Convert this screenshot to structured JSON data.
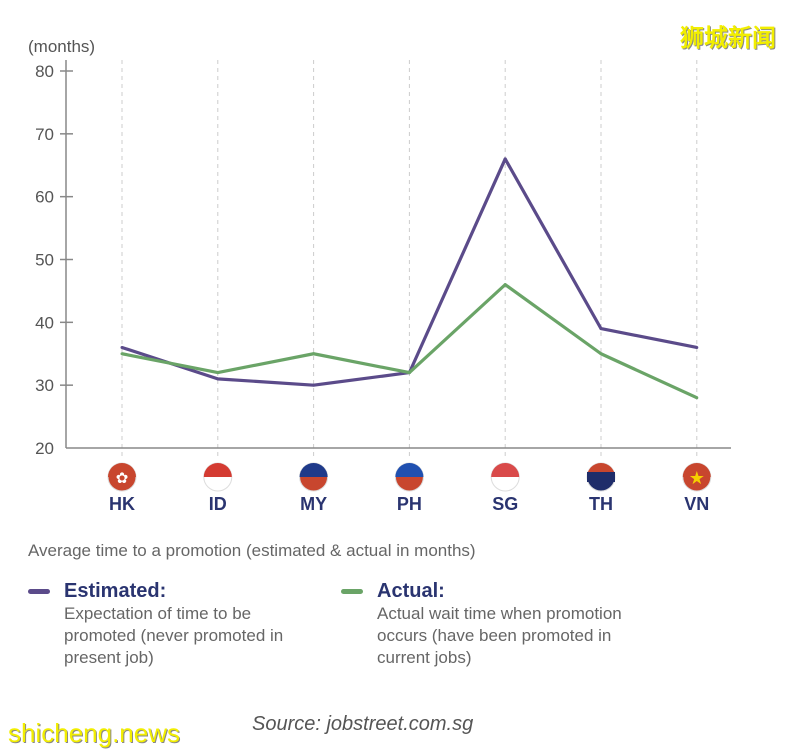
{
  "chart_data": {
    "type": "line",
    "ylabel": "(months)",
    "ylim": [
      20,
      80
    ],
    "yticks": [
      20,
      30,
      40,
      50,
      60,
      70,
      80
    ],
    "categories": [
      "HK",
      "ID",
      "MY",
      "PH",
      "SG",
      "TH",
      "VN"
    ],
    "series": [
      {
        "name": "Estimated",
        "color": "#5b4b8a",
        "values": [
          36,
          31,
          30,
          32,
          66,
          39,
          36
        ]
      },
      {
        "name": "Actual",
        "color": "#6aa467",
        "values": [
          35,
          32,
          35,
          32,
          46,
          35,
          28
        ]
      }
    ],
    "grid": "vertical dashed",
    "title": "Average time to a promotion (estimated & actual in months)"
  },
  "legend": [
    {
      "title": "Estimated:",
      "desc": "Expectation of time to be promoted (never promoted in present job)"
    },
    {
      "title": "Actual:",
      "desc": "Actual wait time when promotion occurs (have been promoted in current jobs)"
    }
  ],
  "source": "Source: jobstreet.com.sg",
  "watermark_top": "狮城新闻",
  "watermark_bottom": "shicheng.news"
}
